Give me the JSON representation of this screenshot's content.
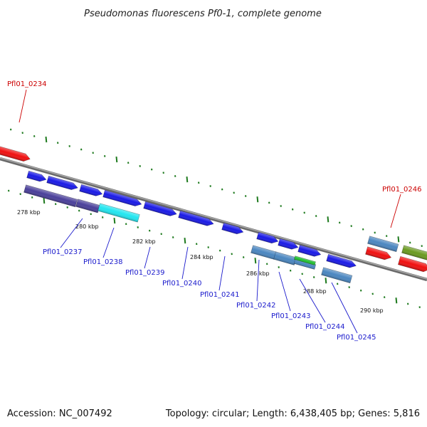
{
  "title": "Pseudomonas fluorescens Pf0-1, complete genome",
  "accession": "Accession: NC_007492",
  "summary": "Topology: circular; Length: 6,438,405 bp; Genes: 5,816",
  "colors": {
    "backbone": "#808080",
    "tick": "#1e7a1e",
    "label_blue": "#1a1acc",
    "label_red": "#cc0000",
    "gene_blue": "#1a1ae6",
    "gene_darkpurple": "#4a3f9a",
    "gene_cyan": "#22e6f0",
    "gene_steel": "#4a86c0",
    "gene_red": "#f01010",
    "gene_olive": "#6a9a20",
    "gene_green": "#22c030"
  },
  "scale_labels": [
    "278 kbp",
    "280 kbp",
    "282 kbp",
    "284 kbp",
    "286 kbp",
    "288 kbp",
    "290 kbp"
  ],
  "genes": [
    {
      "label": "Pfl01_0234",
      "color": "red"
    },
    {
      "label": "Pfl01_0237",
      "color": "blue"
    },
    {
      "label": "Pfl01_0238",
      "color": "blue"
    },
    {
      "label": "Pfl01_0239",
      "color": "blue"
    },
    {
      "label": "Pfl01_0240",
      "color": "blue"
    },
    {
      "label": "Pfl01_0241",
      "color": "blue"
    },
    {
      "label": "Pfl01_0242",
      "color": "blue"
    },
    {
      "label": "Pfl01_0243",
      "color": "blue"
    },
    {
      "label": "Pfl01_0244",
      "color": "blue"
    },
    {
      "label": "Pfl01_0245",
      "color": "blue"
    },
    {
      "label": "Pfl01_0246",
      "color": "red"
    }
  ]
}
